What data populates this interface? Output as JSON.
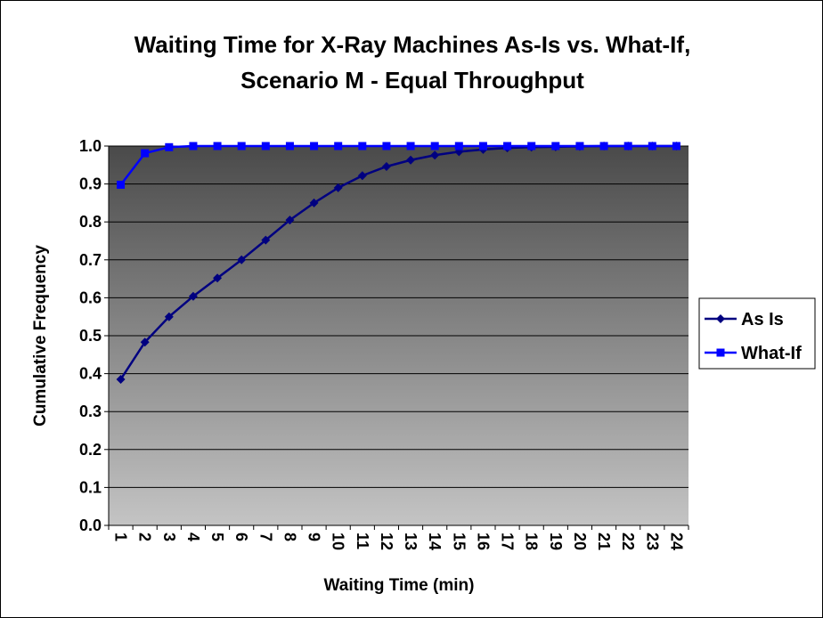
{
  "chart_data": {
    "type": "line",
    "title": "Waiting Time for X-Ray Machines As-Is vs. What-If, Scenario M - Equal Throughput",
    "title_lines": [
      "Waiting Time for X-Ray Machines As-Is vs. What-If,",
      "Scenario M - Equal Throughput"
    ],
    "xlabel": "Waiting Time (min)",
    "ylabel": "Cumulative Frequency",
    "categories": [
      "1",
      "2",
      "3",
      "4",
      "5",
      "6",
      "7",
      "8",
      "9",
      "10",
      "11",
      "12",
      "13",
      "14",
      "15",
      "16",
      "17",
      "18",
      "19",
      "20",
      "21",
      "22",
      "23",
      "24"
    ],
    "ylim": [
      0,
      1.0
    ],
    "yticks": [
      "0.0",
      "0.1",
      "0.2",
      "0.3",
      "0.4",
      "0.5",
      "0.6",
      "0.7",
      "0.8",
      "0.9",
      "1.0"
    ],
    "grid": true,
    "legend_position": "right",
    "series": [
      {
        "name": "As Is",
        "marker": "diamond",
        "color": "#000080",
        "values": [
          0.385,
          0.483,
          0.55,
          0.604,
          0.652,
          0.7,
          0.752,
          0.805,
          0.85,
          0.89,
          0.922,
          0.946,
          0.963,
          0.976,
          0.985,
          0.991,
          0.995,
          0.997,
          0.998,
          0.999,
          1.0,
          1.0,
          1.0,
          1.0
        ]
      },
      {
        "name": "What-If",
        "marker": "square",
        "color": "#0000FF",
        "values": [
          0.898,
          0.981,
          0.997,
          1.0,
          1.0,
          1.0,
          1.0,
          1.0,
          1.0,
          1.0,
          1.0,
          1.0,
          1.0,
          1.0,
          1.0,
          1.0,
          1.0,
          1.0,
          1.0,
          1.0,
          1.0,
          1.0,
          1.0,
          1.0
        ]
      }
    ]
  },
  "colors": {
    "plot_top": "#4a4a4a",
    "plot_bottom": "#c4c4c4",
    "gridline": "#000000"
  }
}
